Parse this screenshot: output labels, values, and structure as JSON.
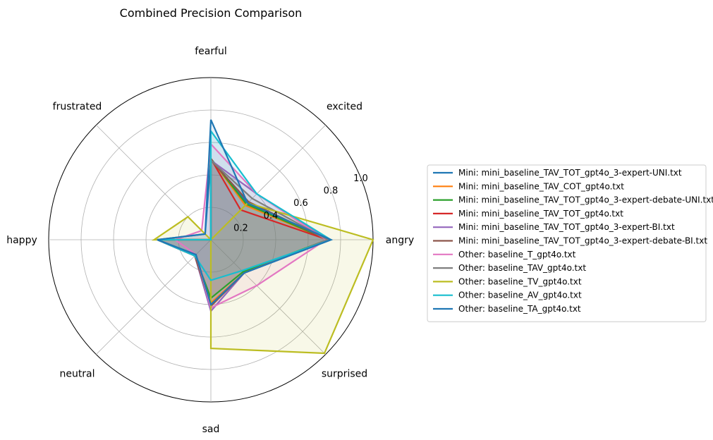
{
  "chart_data": {
    "type": "radar",
    "title": "Combined Precision Comparison",
    "axes": [
      "angry",
      "excited",
      "fearful",
      "frustrated",
      "happy",
      "neutral",
      "sad",
      "surprised"
    ],
    "rlim": [
      0,
      1.0
    ],
    "rticks": [
      0.2,
      0.4,
      0.6,
      0.8,
      1.0
    ],
    "rtick_labels": [
      "0.2",
      "0.4",
      "0.6",
      "0.8",
      "1.0"
    ],
    "grid": true,
    "legend_position": "right",
    "series": [
      {
        "name": "Mini: mini_baseline_TAV_TOT_gpt4o_3-expert-UNI.txt",
        "color": "#1f77b4",
        "values": [
          0.74,
          0.32,
          0.5,
          0.05,
          0.33,
          0.13,
          0.4,
          0.29
        ]
      },
      {
        "name": "Mini: mini_baseline_TAV_COT_gpt4o.txt",
        "color": "#ff7f0e",
        "values": [
          0.72,
          0.3,
          0.5,
          0.0,
          0.33,
          0.14,
          0.39,
          0.29
        ]
      },
      {
        "name": "Mini: mini_baseline_TAV_TOT_gpt4o_3-expert-debate-UNI.txt",
        "color": "#2ca02c",
        "values": [
          0.72,
          0.31,
          0.5,
          0.0,
          0.33,
          0.14,
          0.36,
          0.28
        ]
      },
      {
        "name": "Mini: mini_baseline_TAV_TOT_gpt4o.txt",
        "color": "#d62728",
        "values": [
          0.72,
          0.26,
          0.5,
          0.0,
          0.33,
          0.14,
          0.4,
          0.29
        ]
      },
      {
        "name": "Mini: mini_baseline_TAV_TOT_gpt4o_3-expert-BI.txt",
        "color": "#9467bd",
        "values": [
          0.72,
          0.4,
          0.49,
          0.0,
          0.33,
          0.14,
          0.44,
          0.29
        ]
      },
      {
        "name": "Mini: mini_baseline_TAV_TOT_gpt4o_3-expert-debate-BI.txt",
        "color": "#8c564b",
        "values": [
          0.72,
          0.33,
          0.49,
          0.0,
          0.33,
          0.14,
          0.41,
          0.29
        ]
      },
      {
        "name": "Other: baseline_T_gpt4o.txt",
        "color": "#e377c2",
        "values": [
          0.71,
          0.4,
          0.59,
          0.08,
          0.22,
          0.13,
          0.42,
          0.4
        ]
      },
      {
        "name": "Other: baseline_TAV_gpt4o.txt",
        "color": "#7f7f7f",
        "values": [
          0.72,
          0.36,
          0.49,
          0.0,
          0.33,
          0.13,
          0.4,
          0.29
        ]
      },
      {
        "name": "Other: baseline_TV_gpt4o.txt",
        "color": "#bcbd22",
        "values": [
          1.0,
          0.32,
          0.0,
          0.2,
          0.35,
          0.0,
          0.67,
          0.99
        ]
      },
      {
        "name": "Other: baseline_AV_gpt4o.txt",
        "color": "#17becf",
        "values": [
          0.74,
          0.4,
          0.67,
          0.0,
          0.33,
          0.14,
          0.25,
          0.27
        ]
      },
      {
        "name": "Other: baseline_TA_gpt4o.txt",
        "color": "#1f77b4",
        "values": [
          0.74,
          0.32,
          0.74,
          0.05,
          0.33,
          0.13,
          0.4,
          0.29
        ]
      }
    ]
  }
}
